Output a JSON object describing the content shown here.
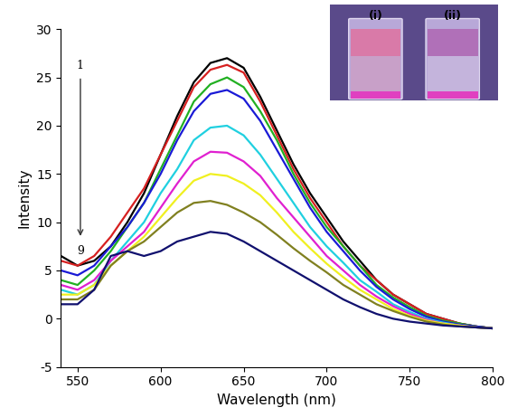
{
  "chart_data": {
    "type": "line",
    "x_label": "Wavelength (nm)",
    "y_label": "Intensity",
    "x": [
      540,
      550,
      560,
      570,
      580,
      590,
      600,
      610,
      620,
      630,
      640,
      650,
      660,
      670,
      680,
      690,
      700,
      710,
      720,
      730,
      740,
      750,
      760,
      770,
      780,
      790,
      800
    ],
    "series": [
      {
        "color": "#000000",
        "values": [
          6.5,
          5.5,
          6,
          7.5,
          10,
          13,
          17,
          21,
          24.5,
          26.5,
          27,
          26,
          23,
          19.5,
          16,
          13,
          10.5,
          8,
          6,
          4,
          2.5,
          1.5,
          0.5,
          0,
          -0.5,
          -0.8,
          -1
        ]
      },
      {
        "color": "#d62020",
        "values": [
          6,
          5.5,
          6.5,
          8.5,
          11,
          13.5,
          17,
          20.5,
          24,
          25.8,
          26.3,
          25.5,
          22.5,
          19,
          15.5,
          12.5,
          10,
          7.5,
          5.5,
          4,
          2.5,
          1.5,
          0.5,
          0,
          -0.5,
          -0.8,
          -1
        ]
      },
      {
        "color": "#22b022",
        "values": [
          4,
          3.5,
          5,
          7,
          9.5,
          12,
          15.5,
          19,
          22.5,
          24.3,
          25,
          24,
          21.5,
          18.5,
          15,
          12,
          9.5,
          7.5,
          5.5,
          3.5,
          2.2,
          1.2,
          0.3,
          -0.2,
          -0.5,
          -0.8,
          -1
        ]
      },
      {
        "color": "#1a1ad6",
        "values": [
          5,
          4.5,
          5.5,
          7.5,
          9.5,
          12,
          15,
          18.5,
          21.5,
          23.3,
          23.7,
          22.8,
          20.5,
          17.5,
          14.5,
          11.5,
          9,
          7,
          5,
          3.3,
          2,
          1,
          0.2,
          -0.3,
          -0.6,
          -0.8,
          -1
        ]
      },
      {
        "color": "#20d0e0",
        "values": [
          3,
          2.5,
          3.5,
          6,
          8,
          10,
          13,
          15.5,
          18.5,
          19.8,
          20,
          19,
          17,
          14.5,
          12,
          9.5,
          7.5,
          5.8,
          4,
          2.8,
          1.5,
          0.7,
          0,
          -0.4,
          -0.7,
          -0.9,
          -1
        ]
      },
      {
        "color": "#e020d0",
        "values": [
          3.5,
          3,
          4,
          6,
          7.5,
          9,
          11.5,
          14,
          16.3,
          17.3,
          17.2,
          16.3,
          14.8,
          12.5,
          10.5,
          8.5,
          6.5,
          5,
          3.5,
          2.3,
          1.3,
          0.5,
          -0.1,
          -0.5,
          -0.7,
          -0.9,
          -1
        ]
      },
      {
        "color": "#f0f020",
        "values": [
          2.5,
          2.5,
          3.5,
          5.5,
          7,
          8.5,
          10.5,
          12.5,
          14.3,
          15,
          14.8,
          14,
          12.8,
          11,
          9,
          7.3,
          5.7,
          4.3,
          3,
          2,
          1,
          0.3,
          -0.2,
          -0.5,
          -0.7,
          -0.9,
          -1
        ]
      },
      {
        "color": "#808020",
        "values": [
          2,
          2,
          3,
          5.5,
          7,
          8,
          9.5,
          11,
          12,
          12.2,
          11.8,
          11,
          10,
          8.7,
          7.3,
          6,
          4.8,
          3.5,
          2.5,
          1.5,
          0.8,
          0.2,
          -0.3,
          -0.6,
          -0.8,
          -0.9,
          -1
        ]
      },
      {
        "color": "#10106e",
        "values": [
          1.5,
          1.5,
          3,
          6.5,
          7,
          6.5,
          7,
          8,
          8.5,
          9,
          8.8,
          8,
          7,
          6,
          5,
          4,
          3,
          2,
          1.2,
          0.5,
          0,
          -0.3,
          -0.5,
          -0.7,
          -0.8,
          -0.9,
          -1
        ]
      }
    ],
    "xlim": [
      540,
      800
    ],
    "xticks": [
      550,
      600,
      650,
      700,
      750,
      800
    ],
    "ylim": [
      -5,
      30
    ],
    "yticks": [
      -5,
      0,
      5,
      10,
      15,
      20,
      25,
      30
    ],
    "annotations": [
      "1",
      "9"
    ],
    "inset": {
      "labels": [
        "(i)",
        "(ii)"
      ]
    }
  }
}
